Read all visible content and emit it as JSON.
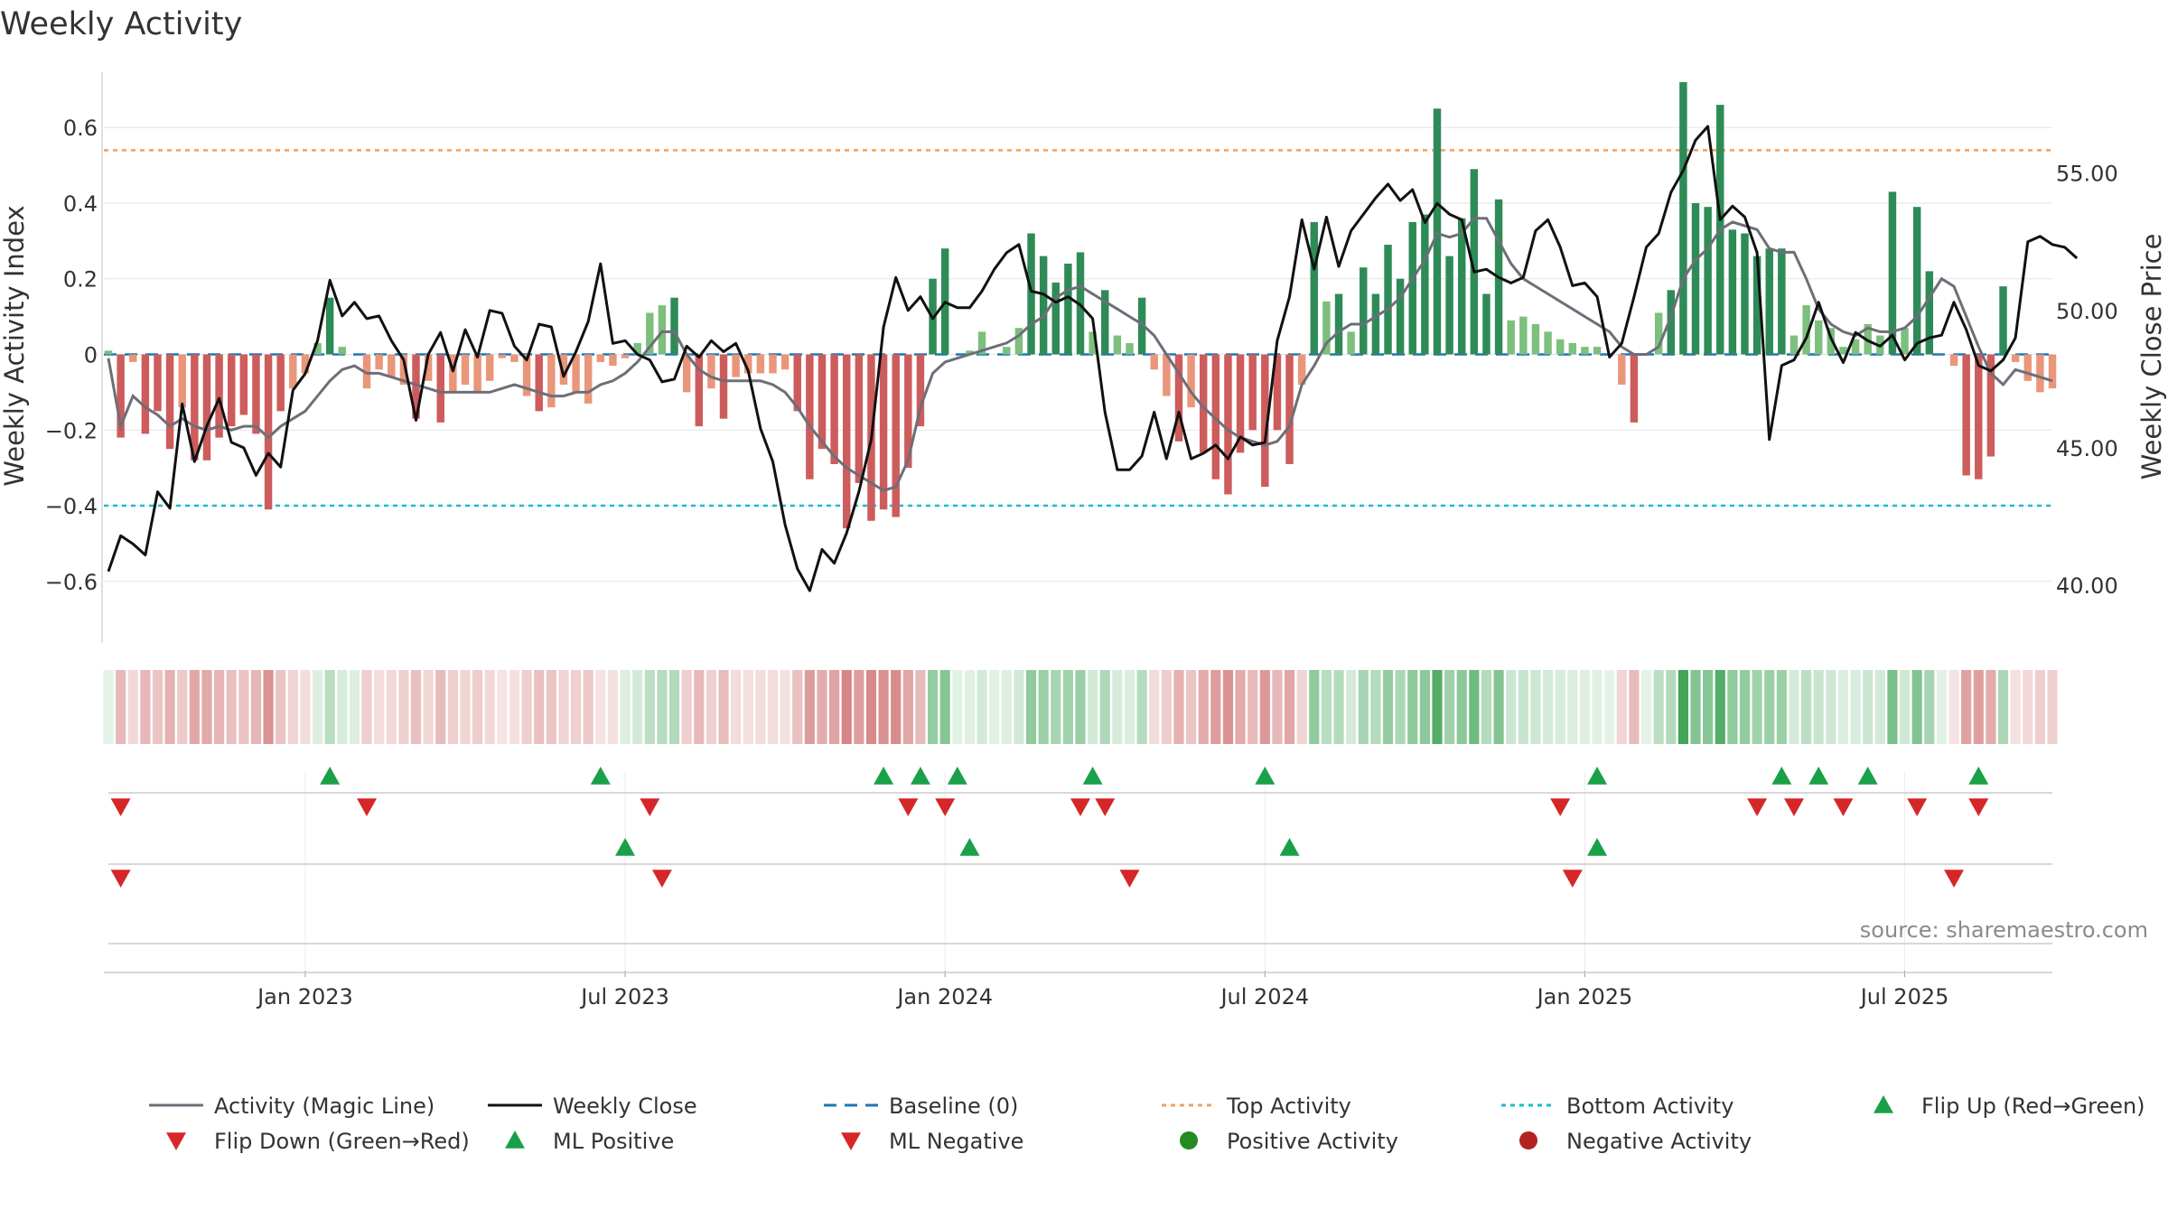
{
  "chart_data": {
    "type": "bar",
    "title": "Weekly Activity",
    "ylabel": "Weekly Activity Index",
    "y2label": "Weekly Close Price",
    "source": "source: sharemaestro.com",
    "ylim": [
      -0.77,
      0.77
    ],
    "y2lim": [
      37.8,
      59.0
    ],
    "yticks": [
      {
        "v": 0.6,
        "label": "0.6"
      },
      {
        "v": 0.4,
        "label": "0.4"
      },
      {
        "v": 0.2,
        "label": "0.2"
      },
      {
        "v": 0,
        "label": "0"
      },
      {
        "v": -0.2,
        "label": "−0.2"
      },
      {
        "v": -0.4,
        "label": "−0.4"
      },
      {
        "v": -0.6,
        "label": "−0.6"
      }
    ],
    "y2ticks": [
      {
        "v": 55,
        "label": "55.00"
      },
      {
        "v": 50,
        "label": "50.00"
      },
      {
        "v": 45,
        "label": "45.00"
      },
      {
        "v": 40,
        "label": "40.00"
      }
    ],
    "xticks": [
      {
        "i": 16,
        "label": "Jan 2023"
      },
      {
        "i": 42,
        "label": "Jul 2023"
      },
      {
        "i": 68,
        "label": "Jan 2024"
      },
      {
        "i": 94,
        "label": "Jul 2024"
      },
      {
        "i": 120,
        "label": "Jan 2025"
      },
      {
        "i": 146,
        "label": "Jul 2025"
      }
    ],
    "baseline": 0,
    "top_activity": 0.54,
    "bottom_activity": -0.4,
    "activity": [
      0.01,
      -0.22,
      -0.02,
      -0.21,
      -0.15,
      -0.25,
      -0.14,
      -0.28,
      -0.28,
      -0.22,
      -0.19,
      -0.16,
      -0.21,
      -0.41,
      -0.15,
      -0.09,
      -0.05,
      0.03,
      0.15,
      0.02,
      0.0,
      -0.09,
      -0.04,
      -0.06,
      -0.08,
      -0.17,
      -0.07,
      -0.18,
      -0.1,
      -0.08,
      -0.1,
      -0.07,
      -0.01,
      -0.02,
      -0.11,
      -0.15,
      -0.14,
      -0.08,
      -0.1,
      -0.13,
      -0.02,
      -0.03,
      -0.01,
      0.03,
      0.11,
      0.13,
      0.15,
      -0.1,
      -0.19,
      -0.09,
      -0.17,
      -0.06,
      -0.05,
      -0.05,
      -0.05,
      -0.04,
      -0.15,
      -0.33,
      -0.25,
      -0.29,
      -0.46,
      -0.34,
      -0.44,
      -0.41,
      -0.43,
      -0.3,
      -0.19,
      0.2,
      0.28,
      0.0,
      0.01,
      0.06,
      0.0,
      0.02,
      0.07,
      0.32,
      0.26,
      0.19,
      0.24,
      0.27,
      0.06,
      0.17,
      0.05,
      0.03,
      0.15,
      -0.04,
      -0.11,
      -0.23,
      -0.14,
      -0.26,
      -0.33,
      -0.37,
      -0.26,
      -0.2,
      -0.35,
      -0.2,
      -0.29,
      -0.08,
      0.35,
      0.14,
      0.16,
      0.06,
      0.23,
      0.16,
      0.29,
      0.2,
      0.35,
      0.37,
      0.65,
      0.26,
      0.36,
      0.49,
      0.16,
      0.41,
      0.09,
      0.1,
      0.08,
      0.06,
      0.04,
      0.03,
      0.02,
      0.02,
      0.0,
      -0.08,
      -0.18,
      0.0,
      0.11,
      0.17,
      0.72,
      0.4,
      0.39,
      0.66,
      0.33,
      0.32,
      0.26,
      0.28,
      0.28,
      0.05,
      0.13,
      0.09,
      0.07,
      0.02,
      0.04,
      0.08,
      0.05,
      0.43,
      0.07,
      0.39,
      0.22,
      0.0,
      -0.03,
      -0.32,
      -0.33,
      -0.27,
      0.18,
      -0.02,
      -0.07,
      -0.1,
      -0.09
    ],
    "magic_line": [
      -0.01,
      -0.19,
      -0.11,
      -0.14,
      -0.16,
      -0.19,
      -0.17,
      -0.19,
      -0.2,
      -0.19,
      -0.2,
      -0.19,
      -0.19,
      -0.22,
      -0.19,
      -0.17,
      -0.15,
      -0.11,
      -0.07,
      -0.04,
      -0.03,
      -0.05,
      -0.05,
      -0.06,
      -0.07,
      -0.08,
      -0.09,
      -0.1,
      -0.1,
      -0.1,
      -0.1,
      -0.1,
      -0.09,
      -0.08,
      -0.09,
      -0.1,
      -0.11,
      -0.11,
      -0.1,
      -0.1,
      -0.08,
      -0.07,
      -0.05,
      -0.02,
      0.02,
      0.06,
      0.06,
      0.0,
      -0.04,
      -0.06,
      -0.07,
      -0.07,
      -0.07,
      -0.07,
      -0.08,
      -0.1,
      -0.14,
      -0.19,
      -0.23,
      -0.27,
      -0.3,
      -0.32,
      -0.34,
      -0.36,
      -0.35,
      -0.28,
      -0.14,
      -0.05,
      -0.02,
      -0.01,
      0.0,
      0.01,
      0.02,
      0.03,
      0.05,
      0.08,
      0.1,
      0.15,
      0.17,
      0.18,
      0.16,
      0.14,
      0.12,
      0.1,
      0.08,
      0.05,
      0.0,
      -0.05,
      -0.1,
      -0.14,
      -0.17,
      -0.2,
      -0.22,
      -0.23,
      -0.24,
      -0.23,
      -0.19,
      -0.08,
      -0.03,
      0.03,
      0.06,
      0.08,
      0.08,
      0.1,
      0.12,
      0.15,
      0.2,
      0.25,
      0.32,
      0.31,
      0.32,
      0.36,
      0.36,
      0.3,
      0.24,
      0.2,
      0.18,
      0.16,
      0.14,
      0.12,
      0.1,
      0.08,
      0.06,
      0.02,
      0.0,
      0.0,
      0.02,
      0.1,
      0.2,
      0.25,
      0.28,
      0.33,
      0.35,
      0.34,
      0.33,
      0.28,
      0.27,
      0.27,
      0.2,
      0.12,
      0.08,
      0.06,
      0.05,
      0.07,
      0.06,
      0.06,
      0.07,
      0.1,
      0.15,
      0.2,
      0.18,
      0.1,
      0.02,
      -0.05,
      -0.08,
      -0.04,
      -0.05,
      -0.06,
      -0.07
    ],
    "weekly_close": [
      40.5,
      41.8,
      41.5,
      41.1,
      43.4,
      42.8,
      46.6,
      44.5,
      45.8,
      46.8,
      45.2,
      45.0,
      44.0,
      44.8,
      44.3,
      47.1,
      47.7,
      48.9,
      51.1,
      49.8,
      50.3,
      49.7,
      49.8,
      48.9,
      48.2,
      46.0,
      48.4,
      49.2,
      47.8,
      49.3,
      48.3,
      50.0,
      49.9,
      48.7,
      48.2,
      49.5,
      49.4,
      47.6,
      48.5,
      49.6,
      51.7,
      48.8,
      48.9,
      48.4,
      48.2,
      47.4,
      47.5,
      48.7,
      48.3,
      48.9,
      48.5,
      48.8,
      47.8,
      45.7,
      44.5,
      42.2,
      40.6,
      39.8,
      41.3,
      40.8,
      41.9,
      43.4,
      45.3,
      49.4,
      51.2,
      50.0,
      50.5,
      49.7,
      50.3,
      50.1,
      50.1,
      50.7,
      51.5,
      52.1,
      52.4,
      50.7,
      50.6,
      50.3,
      50.5,
      50.2,
      49.7,
      46.3,
      44.2,
      44.2,
      44.7,
      46.3,
      44.6,
      46.3,
      44.6,
      44.8,
      45.1,
      44.6,
      45.4,
      45.1,
      45.2,
      48.9,
      50.5,
      53.3,
      51.5,
      53.4,
      51.6,
      52.9,
      53.5,
      54.1,
      54.6,
      54.0,
      54.4,
      53.2,
      53.9,
      53.5,
      53.3,
      51.4,
      51.5,
      51.2,
      51.0,
      51.2,
      52.9,
      53.3,
      52.3,
      50.9,
      51.0,
      50.5,
      48.3,
      48.8,
      50.5,
      52.3,
      52.8,
      54.3,
      55.1,
      56.2,
      56.7,
      53.3,
      53.8,
      53.4,
      52.1,
      45.3,
      48.0,
      48.2,
      49.0,
      50.3,
      49.0,
      48.1,
      49.2,
      48.9,
      48.7,
      49.1,
      48.2,
      48.8,
      49.0,
      49.1,
      50.3,
      49.3,
      48.0,
      47.8,
      48.2,
      49.0,
      52.5,
      52.7,
      52.4,
      52.3,
      51.9
    ],
    "heatmap": [
      0.12,
      -0.36,
      -0.2,
      -0.37,
      -0.3,
      -0.4,
      -0.28,
      -0.45,
      -0.44,
      -0.38,
      -0.33,
      -0.31,
      -0.37,
      -0.56,
      -0.31,
      -0.22,
      -0.18,
      0.15,
      0.32,
      0.18,
      0.15,
      -0.25,
      -0.18,
      -0.2,
      -0.24,
      -0.33,
      -0.21,
      -0.35,
      -0.25,
      -0.22,
      -0.26,
      -0.2,
      -0.14,
      -0.16,
      -0.26,
      -0.32,
      -0.3,
      -0.22,
      -0.24,
      -0.28,
      -0.15,
      -0.16,
      0.16,
      0.2,
      0.3,
      0.33,
      0.35,
      -0.25,
      -0.36,
      -0.24,
      -0.34,
      -0.18,
      -0.17,
      -0.18,
      -0.18,
      -0.16,
      -0.32,
      -0.5,
      -0.42,
      -0.48,
      -0.62,
      -0.5,
      -0.6,
      -0.57,
      -0.59,
      -0.46,
      -0.35,
      0.48,
      0.55,
      0.13,
      0.14,
      0.2,
      0.13,
      0.15,
      0.21,
      0.5,
      0.45,
      0.4,
      0.43,
      0.46,
      0.2,
      0.37,
      0.19,
      0.17,
      0.33,
      -0.18,
      -0.26,
      -0.4,
      -0.3,
      -0.43,
      -0.5,
      -0.55,
      -0.43,
      -0.36,
      -0.52,
      -0.37,
      -0.46,
      -0.22,
      0.5,
      0.32,
      0.34,
      0.2,
      0.4,
      0.34,
      0.48,
      0.38,
      0.51,
      0.52,
      0.78,
      0.44,
      0.52,
      0.65,
      0.34,
      0.56,
      0.24,
      0.25,
      0.23,
      0.2,
      0.18,
      0.16,
      0.15,
      0.14,
      0.12,
      -0.22,
      -0.35,
      0.12,
      0.3,
      0.35,
      0.85,
      0.56,
      0.55,
      0.78,
      0.5,
      0.49,
      0.43,
      0.45,
      0.45,
      0.19,
      0.3,
      0.25,
      0.22,
      0.16,
      0.18,
      0.24,
      0.2,
      0.6,
      0.22,
      0.56,
      0.4,
      0.13,
      -0.15,
      -0.48,
      -0.49,
      -0.43,
      0.38,
      -0.16,
      -0.2,
      -0.25,
      -0.24
    ],
    "flip_up_weeks": [
      18,
      40,
      63,
      66,
      69,
      80,
      94,
      121,
      136,
      139,
      143,
      152
    ],
    "flip_down_weeks": [
      1,
      21,
      44,
      65,
      68,
      79,
      81,
      118,
      134,
      137,
      141,
      147,
      152
    ],
    "ml_positive_weeks": [
      42,
      70,
      96,
      121
    ],
    "ml_negative_weeks": [
      1,
      45,
      83,
      119,
      150
    ],
    "legend": [
      "Activity (Magic Line)",
      "Weekly Close",
      "Baseline (0)",
      "Top Activity",
      "Bottom Activity",
      "Flip Up (Red→Green)",
      "Flip Down (Green→Red)",
      "ML Positive",
      "ML Negative",
      "Positive Activity",
      "Negative Activity"
    ],
    "colors": {
      "strong_green": "#2e8b57",
      "light_green": "#7dbf7d",
      "strong_red": "#cd5c5c",
      "light_red": "#e9967a",
      "magic_line": "#6e6e78",
      "close": "#111111",
      "baseline": "#1f77b4",
      "top": "#f0a060",
      "bottom": "#17becf",
      "marker_up": "#1aa048",
      "marker_down": "#d62728",
      "pos_dot": "#228b22",
      "neg_dot": "#b22222",
      "grid": "#e3e3e3",
      "axis": "#cccccc",
      "text": "#333333"
    }
  }
}
